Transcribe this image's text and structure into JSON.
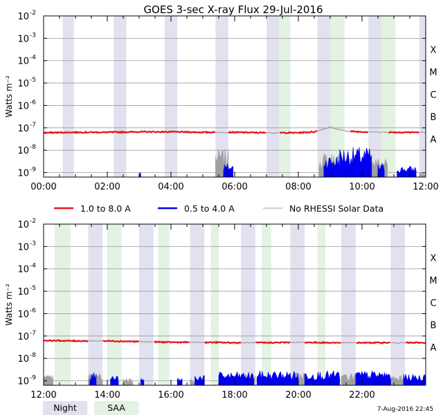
{
  "title": "GOES 3-sec X-ray Flux   29-Jul-2016",
  "ylabel": "Watts m⁻²",
  "footer": "7-Aug-2016 22:45",
  "colors": {
    "long": "#e8141c",
    "short": "#0000ee",
    "norhessi": "#a0a0a0",
    "night": "#e1e1ef",
    "saa": "#e3f2e3"
  },
  "legend": {
    "long_label": "1.0 to 8.0 A",
    "short_label": "0.5 to 4.0 A",
    "norhessi_label": "No RHESSI Solar Data",
    "night_label": "Night",
    "saa_label": "SAA"
  },
  "chart_data": [
    {
      "type": "line",
      "name": "top-panel",
      "x_unit": "hours UT",
      "xlim": [
        0,
        12
      ],
      "ylim_log10": [
        -9.2,
        -2
      ],
      "yscale": "log",
      "y_ticks": [
        {
          "exp": -2,
          "label": "10",
          "sup": "-2"
        },
        {
          "exp": -3,
          "label": "10",
          "sup": "-3"
        },
        {
          "exp": -4,
          "label": "10",
          "sup": "-4"
        },
        {
          "exp": -5,
          "label": "10",
          "sup": "-5"
        },
        {
          "exp": -6,
          "label": "10",
          "sup": "-6"
        },
        {
          "exp": -7,
          "label": "10",
          "sup": "-7"
        },
        {
          "exp": -8,
          "label": "10",
          "sup": "-8"
        },
        {
          "exp": -9,
          "label": "10",
          "sup": "-9"
        }
      ],
      "x_ticks": [
        {
          "t": 0,
          "label": "00:00"
        },
        {
          "t": 2,
          "label": "02:00"
        },
        {
          "t": 4,
          "label": "04:00"
        },
        {
          "t": 6,
          "label": "06:00"
        },
        {
          "t": 8,
          "label": "08:00"
        },
        {
          "t": 10,
          "label": "10:00"
        },
        {
          "t": 12,
          "label": "12:00"
        }
      ],
      "class_labels": [
        {
          "exp": -3.5,
          "label": "X"
        },
        {
          "exp": -4.5,
          "label": "M"
        },
        {
          "exp": -5.5,
          "label": "C"
        },
        {
          "exp": -6.5,
          "label": "B"
        },
        {
          "exp": -7.5,
          "label": "A"
        }
      ],
      "night": [
        [
          0.6,
          0.95
        ],
        [
          2.2,
          2.6
        ],
        [
          3.8,
          4.2
        ],
        [
          5.4,
          5.8
        ],
        [
          7.0,
          7.4
        ],
        [
          8.6,
          9.0
        ],
        [
          10.2,
          10.6
        ],
        [
          11.8,
          12.0
        ]
      ],
      "saa": [
        [
          7.4,
          7.75
        ],
        [
          9.0,
          9.45
        ],
        [
          10.6,
          11.05
        ]
      ],
      "long": [
        [
          0,
          -7.22
        ],
        [
          1,
          -7.2
        ],
        [
          2,
          -7.2
        ],
        [
          3,
          -7.18
        ],
        [
          4,
          -7.18
        ],
        [
          5,
          -7.2
        ],
        [
          6,
          -7.2
        ],
        [
          7,
          -7.22
        ],
        [
          8,
          -7.22
        ],
        [
          8.5,
          -7.18
        ],
        [
          8.8,
          -7.05
        ],
        [
          9.0,
          -6.97
        ],
        [
          9.2,
          -7.05
        ],
        [
          9.5,
          -7.15
        ],
        [
          10,
          -7.18
        ],
        [
          11,
          -7.2
        ],
        [
          12,
          -7.2
        ]
      ],
      "norhessi_long": [
        [
          5.4,
          5.8
        ],
        [
          7.0,
          7.4
        ],
        [
          8.6,
          9.6
        ],
        [
          10.2,
          10.8
        ],
        [
          11.8,
          12.0
        ]
      ],
      "short_bursts": [
        {
          "start": 3.0,
          "end": 3.05,
          "peak": -8.95
        },
        {
          "start": 5.65,
          "end": 5.95,
          "peak": -8.6
        },
        {
          "start": 8.8,
          "end": 9.3,
          "peak": -8.2
        },
        {
          "start": 9.3,
          "end": 10.3,
          "peak": -7.85
        },
        {
          "start": 10.5,
          "end": 10.7,
          "peak": -8.6
        },
        {
          "start": 11.1,
          "end": 11.7,
          "peak": -8.7
        }
      ],
      "norhessi_bursts": [
        {
          "start": 5.4,
          "end": 5.8,
          "peak": -7.95
        },
        {
          "start": 8.65,
          "end": 9.35,
          "peak": -8.1
        },
        {
          "start": 10.2,
          "end": 10.8,
          "peak": -8.3
        },
        {
          "start": 11.8,
          "end": 12.0,
          "peak": -8.95
        }
      ]
    },
    {
      "type": "line",
      "name": "bottom-panel",
      "x_unit": "hours UT",
      "xlim": [
        12,
        24
      ],
      "ylim_log10": [
        -9.2,
        -2
      ],
      "yscale": "log",
      "y_ticks": [
        {
          "exp": -2,
          "label": "10",
          "sup": "-2"
        },
        {
          "exp": -3,
          "label": "10",
          "sup": "-3"
        },
        {
          "exp": -4,
          "label": "10",
          "sup": "-4"
        },
        {
          "exp": -5,
          "label": "10",
          "sup": "-5"
        },
        {
          "exp": -6,
          "label": "10",
          "sup": "-6"
        },
        {
          "exp": -7,
          "label": "10",
          "sup": "-7"
        },
        {
          "exp": -8,
          "label": "10",
          "sup": "-8"
        },
        {
          "exp": -9,
          "label": "10",
          "sup": "-9"
        }
      ],
      "x_ticks": [
        {
          "t": 12,
          "label": "12:00"
        },
        {
          "t": 14,
          "label": "14:00"
        },
        {
          "t": 16,
          "label": "16:00"
        },
        {
          "t": 18,
          "label": "18:00"
        },
        {
          "t": 20,
          "label": "20:00"
        },
        {
          "t": 22,
          "label": "22:00"
        }
      ],
      "class_labels": [
        {
          "exp": -3.5,
          "label": "X"
        },
        {
          "exp": -4.5,
          "label": "M"
        },
        {
          "exp": -5.5,
          "label": "C"
        },
        {
          "exp": -6.5,
          "label": "B"
        },
        {
          "exp": -7.5,
          "label": "A"
        }
      ],
      "night": [
        [
          13.4,
          13.85
        ],
        [
          15.0,
          15.45
        ],
        [
          16.6,
          17.05
        ],
        [
          18.2,
          18.65
        ],
        [
          19.75,
          20.2
        ],
        [
          21.35,
          21.8
        ],
        [
          22.9,
          23.35
        ]
      ],
      "saa": [
        [
          12.35,
          12.85
        ],
        [
          14.0,
          14.45
        ],
        [
          15.6,
          15.95
        ],
        [
          17.25,
          17.5
        ],
        [
          18.85,
          19.15
        ],
        [
          20.6,
          20.85
        ]
      ],
      "long": [
        [
          12,
          -7.2
        ],
        [
          13,
          -7.22
        ],
        [
          14,
          -7.22
        ],
        [
          15,
          -7.25
        ],
        [
          16,
          -7.28
        ],
        [
          17,
          -7.28
        ],
        [
          18,
          -7.3
        ],
        [
          19,
          -7.3
        ],
        [
          20,
          -7.28
        ],
        [
          21,
          -7.3
        ],
        [
          22,
          -7.3
        ],
        [
          23,
          -7.3
        ],
        [
          24,
          -7.3
        ]
      ],
      "norhessi_long": [
        [
          13.4,
          13.85
        ],
        [
          15.0,
          15.45
        ],
        [
          16.6,
          17.05
        ],
        [
          18.2,
          18.65
        ],
        [
          19.75,
          20.2
        ],
        [
          21.35,
          21.8
        ],
        [
          22.9,
          23.35
        ]
      ],
      "short_bursts": [
        {
          "start": 13.45,
          "end": 13.65,
          "peak": -8.6
        },
        {
          "start": 14.1,
          "end": 14.35,
          "peak": -8.75
        },
        {
          "start": 15.05,
          "end": 15.15,
          "peak": -8.9
        },
        {
          "start": 16.2,
          "end": 16.35,
          "peak": -8.85
        },
        {
          "start": 16.75,
          "end": 17.05,
          "peak": -8.7
        },
        {
          "start": 17.5,
          "end": 18.6,
          "peak": -8.6
        },
        {
          "start": 18.7,
          "end": 20.0,
          "peak": -8.55
        },
        {
          "start": 20.2,
          "end": 21.3,
          "peak": -8.55
        },
        {
          "start": 21.8,
          "end": 22.9,
          "peak": -8.55
        },
        {
          "start": 23.3,
          "end": 24.0,
          "peak": -8.7
        }
      ],
      "norhessi_bursts": [
        {
          "start": 12.0,
          "end": 12.3,
          "peak": -8.75
        },
        {
          "start": 13.4,
          "end": 13.85,
          "peak": -8.65
        },
        {
          "start": 14.5,
          "end": 14.8,
          "peak": -8.85
        },
        {
          "start": 16.6,
          "end": 17.05,
          "peak": -8.9
        },
        {
          "start": 18.2,
          "end": 18.65,
          "peak": -8.7
        },
        {
          "start": 19.75,
          "end": 20.2,
          "peak": -8.6
        },
        {
          "start": 21.35,
          "end": 21.8,
          "peak": -8.65
        },
        {
          "start": 22.9,
          "end": 23.35,
          "peak": -8.7
        }
      ]
    }
  ]
}
